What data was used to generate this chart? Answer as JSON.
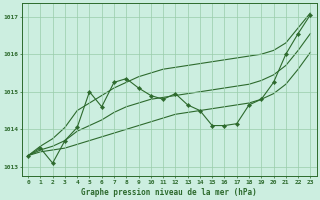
{
  "hours": [
    0,
    1,
    2,
    3,
    4,
    5,
    6,
    7,
    8,
    9,
    10,
    11,
    12,
    13,
    14,
    15,
    16,
    17,
    18,
    19,
    20,
    21,
    22,
    23
  ],
  "pressure_jagged": [
    1013.3,
    1013.5,
    1013.1,
    1013.7,
    1014.05,
    1015.0,
    1014.6,
    1015.25,
    1015.35,
    1015.1,
    1014.9,
    1014.8,
    1014.95,
    1014.65,
    1014.5,
    1014.1,
    1014.1,
    1014.15,
    1014.65,
    1014.8,
    1015.25,
    1016.0,
    1016.55,
    1017.05
  ],
  "pressure_upper_diag": [
    1013.3,
    1013.55,
    1013.75,
    1014.05,
    1014.5,
    1014.7,
    1014.9,
    1015.1,
    1015.25,
    1015.4,
    1015.5,
    1015.6,
    1015.65,
    1015.7,
    1015.75,
    1015.8,
    1015.85,
    1015.9,
    1015.95,
    1016.0,
    1016.1,
    1016.3,
    1016.7,
    1017.1
  ],
  "pressure_lower_diag": [
    1013.3,
    1013.4,
    1013.45,
    1013.5,
    1013.6,
    1013.7,
    1013.8,
    1013.9,
    1014.0,
    1014.1,
    1014.2,
    1014.3,
    1014.4,
    1014.45,
    1014.5,
    1014.55,
    1014.6,
    1014.65,
    1014.7,
    1014.8,
    1014.95,
    1015.2,
    1015.6,
    1016.05
  ],
  "pressure_mid_diag": [
    1013.3,
    1013.45,
    1013.55,
    1013.7,
    1013.95,
    1014.1,
    1014.25,
    1014.45,
    1014.6,
    1014.7,
    1014.8,
    1014.85,
    1014.9,
    1014.95,
    1015.0,
    1015.05,
    1015.1,
    1015.15,
    1015.2,
    1015.3,
    1015.45,
    1015.7,
    1016.1,
    1016.55
  ],
  "line_color": "#2d6a2d",
  "bg_color": "#cceee0",
  "grid_color": "#99ccaa",
  "xlabel": "Graphe pression niveau de la mer (hPa)",
  "ylim": [
    1012.75,
    1017.35
  ],
  "xlim": [
    -0.5,
    23.5
  ],
  "yticks": [
    1013,
    1014,
    1015,
    1016,
    1017
  ],
  "xticks": [
    0,
    1,
    2,
    3,
    4,
    5,
    6,
    7,
    8,
    9,
    10,
    11,
    12,
    13,
    14,
    15,
    16,
    17,
    18,
    19,
    20,
    21,
    22,
    23
  ],
  "markersize": 2.2,
  "linewidth": 0.8,
  "figsize": [
    3.2,
    2.0
  ],
  "dpi": 100
}
